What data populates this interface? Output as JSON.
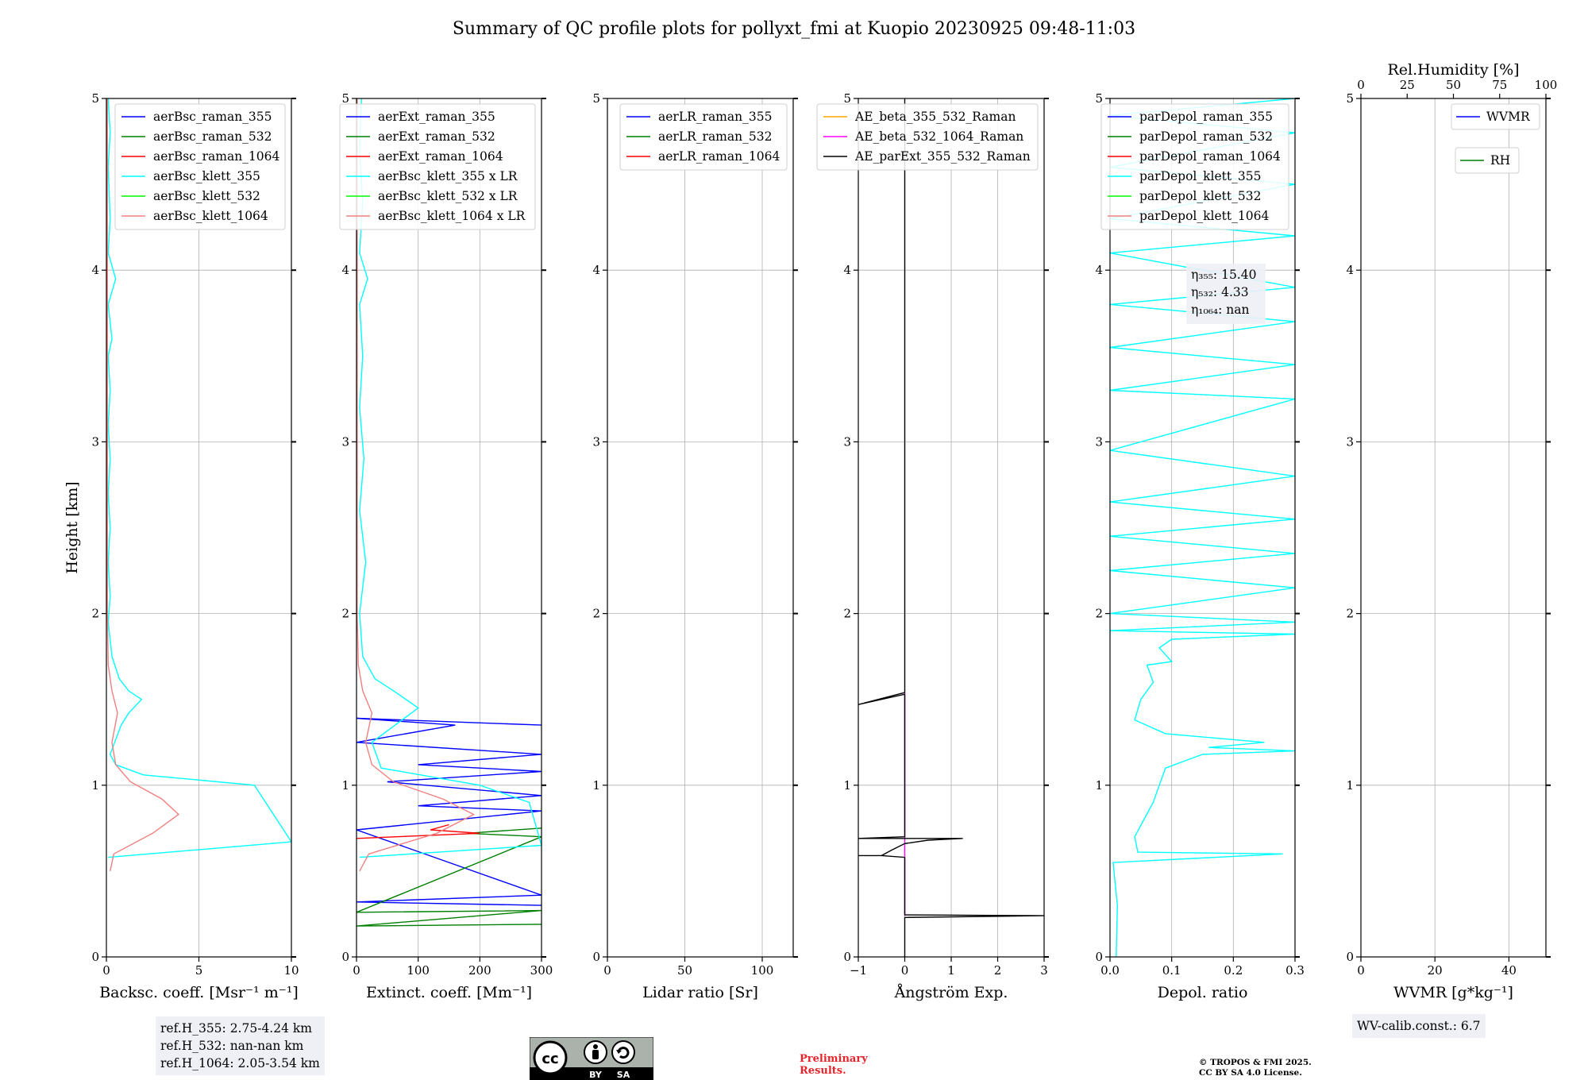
{
  "figure": {
    "title": "Summary of QC profile plots for pollyxt_fmi at Kuopio 20230925 09:48-11:03"
  },
  "chart_data": [
    {
      "type": "line",
      "id": "bsc",
      "xlabel": "Backsc. coeff. [Msr⁻¹ m⁻¹]",
      "ylabel": "Height [km]",
      "xlim": [
        0,
        10
      ],
      "ylim": [
        0,
        5
      ],
      "xticks": [
        0,
        5,
        10
      ],
      "yticks": [
        0,
        1,
        2,
        3,
        4,
        5
      ],
      "grid": true,
      "legend_position": "top-right",
      "series": [
        {
          "name": "aerBsc_raman_355",
          "color": "#0000ff",
          "points": []
        },
        {
          "name": "aerBsc_raman_532",
          "color": "#008000",
          "points": []
        },
        {
          "name": "aerBsc_raman_1064",
          "color": "#ff0000",
          "points": []
        },
        {
          "name": "aerBsc_klett_355",
          "color": "#00ffff",
          "points": [
            [
              0.1,
              0.58
            ],
            [
              10,
              0.67
            ],
            [
              8,
              1.0
            ],
            [
              2,
              1.06
            ],
            [
              0.5,
              1.12
            ],
            [
              0.2,
              1.18
            ],
            [
              0.8,
              1.35
            ],
            [
              1.2,
              1.42
            ],
            [
              1.9,
              1.5
            ],
            [
              1.2,
              1.55
            ],
            [
              0.7,
              1.62
            ],
            [
              0.3,
              1.75
            ],
            [
              0.1,
              1.95
            ],
            [
              0.2,
              2.1
            ],
            [
              0.1,
              2.3
            ],
            [
              0.2,
              2.5
            ],
            [
              0.1,
              2.7
            ],
            [
              0.2,
              2.9
            ],
            [
              0.1,
              3.1
            ],
            [
              0.2,
              3.3
            ],
            [
              0.1,
              3.5
            ],
            [
              0.3,
              3.6
            ],
            [
              0.1,
              3.8
            ],
            [
              0.5,
              3.95
            ],
            [
              0.1,
              4.1
            ],
            [
              0.2,
              4.3
            ],
            [
              0.1,
              4.6
            ],
            [
              0.2,
              4.8
            ],
            [
              0.1,
              5.0
            ]
          ]
        },
        {
          "name": "aerBsc_klett_532",
          "color": "#00ff00",
          "points": []
        },
        {
          "name": "aerBsc_klett_1064",
          "color": "#f08080",
          "points": [
            [
              0.2,
              0.5
            ],
            [
              0.4,
              0.6
            ],
            [
              2.5,
              0.72
            ],
            [
              3.9,
              0.83
            ],
            [
              3.0,
              0.92
            ],
            [
              1.3,
              1.02
            ],
            [
              0.5,
              1.12
            ],
            [
              0.3,
              1.25
            ],
            [
              0.6,
              1.42
            ],
            [
              0.3,
              1.55
            ],
            [
              0.1,
              1.7
            ],
            [
              0.05,
              2.0
            ],
            [
              0.05,
              3.0
            ],
            [
              0.05,
              4.0
            ],
            [
              0.05,
              5.0
            ]
          ]
        }
      ]
    },
    {
      "type": "line",
      "id": "ext",
      "xlabel": "Extinct. coeff. [Mm⁻¹]",
      "xlim": [
        0,
        300
      ],
      "ylim": [
        0,
        5
      ],
      "xticks": [
        0,
        100,
        200,
        300
      ],
      "yticks": [
        0,
        1,
        2,
        3,
        4,
        5
      ],
      "grid": true,
      "legend_position": "top-right",
      "series": [
        {
          "name": "aerExt_raman_355",
          "color": "#0000ff",
          "points": [
            [
              300,
              1.35
            ],
            [
              0,
              1.39
            ],
            [
              160,
              1.35
            ],
            [
              0,
              1.25
            ],
            [
              300,
              1.18
            ],
            [
              100,
              1.12
            ],
            [
              300,
              1.08
            ],
            [
              50,
              1.02
            ],
            [
              300,
              0.94
            ],
            [
              100,
              0.88
            ],
            [
              300,
              0.85
            ],
            [
              0,
              0.74
            ],
            [
              300,
              0.36
            ],
            [
              0,
              0.32
            ],
            [
              300,
              0.3
            ]
          ]
        },
        {
          "name": "aerExt_raman_532",
          "color": "#008000",
          "points": [
            [
              300,
              0.75
            ],
            [
              180,
              0.72
            ],
            [
              300,
              0.7
            ],
            [
              0,
              0.26
            ],
            [
              300,
              0.27
            ],
            [
              0,
              0.18
            ],
            [
              300,
              0.19
            ]
          ]
        },
        {
          "name": "aerExt_raman_1064",
          "color": "#ff0000",
          "points": [
            [
              150,
              0.77
            ],
            [
              120,
              0.74
            ],
            [
              200,
              0.72
            ],
            [
              0,
              0.69
            ]
          ]
        },
        {
          "name": "aerBsc_klett_355 x LR",
          "color": "#00ffff",
          "points": [
            [
              5,
              0.58
            ],
            [
              300,
              0.65
            ],
            [
              280,
              0.9
            ],
            [
              200,
              1.0
            ],
            [
              40,
              1.1
            ],
            [
              25,
              1.25
            ],
            [
              100,
              1.45
            ],
            [
              60,
              1.55
            ],
            [
              30,
              1.62
            ],
            [
              10,
              1.75
            ],
            [
              5,
              2.0
            ],
            [
              15,
              2.3
            ],
            [
              5,
              2.6
            ],
            [
              12,
              2.9
            ],
            [
              5,
              3.2
            ],
            [
              10,
              3.5
            ],
            [
              5,
              3.8
            ],
            [
              18,
              3.95
            ],
            [
              5,
              4.1
            ],
            [
              10,
              4.4
            ],
            [
              5,
              4.7
            ],
            [
              8,
              5.0
            ]
          ]
        },
        {
          "name": "aerBsc_klett_532 x LR",
          "color": "#00ff00",
          "points": []
        },
        {
          "name": "aerBsc_klett_1064 x LR",
          "color": "#f08080",
          "points": [
            [
              5,
              0.5
            ],
            [
              20,
              0.6
            ],
            [
              130,
              0.72
            ],
            [
              190,
              0.83
            ],
            [
              140,
              0.92
            ],
            [
              60,
              1.02
            ],
            [
              25,
              1.12
            ],
            [
              15,
              1.25
            ],
            [
              25,
              1.42
            ],
            [
              10,
              1.55
            ],
            [
              3,
              1.7
            ],
            [
              1,
              2.0
            ],
            [
              1,
              5.0
            ]
          ]
        }
      ]
    },
    {
      "type": "line",
      "id": "lr",
      "xlabel": "Lidar ratio [Sr]",
      "xlim": [
        0,
        120
      ],
      "ylim": [
        0,
        5
      ],
      "xticks": [
        0,
        50,
        100
      ],
      "yticks": [
        0,
        1,
        2,
        3,
        4,
        5
      ],
      "grid": true,
      "legend_position": "top-right",
      "series": [
        {
          "name": "aerLR_raman_355",
          "color": "#0000ff",
          "points": []
        },
        {
          "name": "aerLR_raman_532",
          "color": "#008000",
          "points": []
        },
        {
          "name": "aerLR_raman_1064",
          "color": "#ff0000",
          "points": []
        }
      ]
    },
    {
      "type": "line",
      "id": "ae",
      "xlabel": "Ångström Exp.",
      "xlim": [
        -1,
        3
      ],
      "ylim": [
        0,
        5
      ],
      "xticks": [
        -1,
        0,
        1,
        2,
        3
      ],
      "xtick_labels": [
        "−1",
        "0",
        "1",
        "2",
        "3"
      ],
      "yticks": [
        0,
        1,
        2,
        3,
        4,
        5
      ],
      "grid": true,
      "legend_position": "top-right",
      "series": [
        {
          "name": "AE_beta_355_532_Raman",
          "color": "#ffa500",
          "points": []
        },
        {
          "name": "AE_beta_532_1064_Raman",
          "color": "#ff00ff",
          "points": [
            [
              0,
              0.24
            ],
            [
              0,
              1.54
            ]
          ]
        },
        {
          "name": "AE_parExt_355_532_Raman",
          "color": "#000000",
          "points": [
            [
              0,
              0.0
            ],
            [
              0,
              0.23
            ],
            [
              3,
              0.24
            ],
            [
              0,
              0.245
            ],
            [
              0,
              0.58
            ],
            [
              -0.5,
              0.59
            ],
            [
              -1,
              0.59
            ],
            [
              -0.5,
              0.59
            ],
            [
              -0.3,
              0.62
            ],
            [
              0,
              0.66
            ],
            [
              0.5,
              0.68
            ],
            [
              1.25,
              0.69
            ],
            [
              -1,
              0.69
            ],
            [
              0,
              0.7
            ],
            [
              0,
              1.53
            ],
            [
              -1,
              1.47
            ],
            [
              0,
              1.54
            ],
            [
              0,
              5.0
            ]
          ]
        }
      ]
    },
    {
      "type": "line",
      "id": "depol",
      "xlabel": "Depol. ratio",
      "xlim": [
        0,
        0.3
      ],
      "ylim": [
        0,
        5
      ],
      "xticks": [
        0,
        0.1,
        0.2,
        0.3
      ],
      "xtick_labels": [
        "0.0",
        "0.1",
        "0.2",
        "0.3"
      ],
      "yticks": [
        0,
        1,
        2,
        3,
        4,
        5
      ],
      "grid": true,
      "legend_position": "top-right",
      "series": [
        {
          "name": "parDepol_raman_355",
          "color": "#0000ff",
          "points": []
        },
        {
          "name": "parDepol_raman_532",
          "color": "#008000",
          "points": []
        },
        {
          "name": "parDepol_raman_1064",
          "color": "#ff0000",
          "points": []
        },
        {
          "name": "parDepol_klett_355",
          "color": "#00ffff",
          "points": [
            [
              0.01,
              0.0
            ],
            [
              0.012,
              0.3
            ],
            [
              0.005,
              0.55
            ],
            [
              0.28,
              0.6
            ],
            [
              0.045,
              0.61
            ],
            [
              0.04,
              0.7
            ],
            [
              0.055,
              0.8
            ],
            [
              0.07,
              0.9
            ],
            [
              0.08,
              1.0
            ],
            [
              0.09,
              1.1
            ],
            [
              0.15,
              1.18
            ],
            [
              0.3,
              1.2
            ],
            [
              0.16,
              1.22
            ],
            [
              0.25,
              1.25
            ],
            [
              0.09,
              1.3
            ],
            [
              0.04,
              1.38
            ],
            [
              0.05,
              1.5
            ],
            [
              0.07,
              1.6
            ],
            [
              0.06,
              1.7
            ],
            [
              0.1,
              1.72
            ],
            [
              0.08,
              1.8
            ],
            [
              0.1,
              1.85
            ],
            [
              0.3,
              1.88
            ],
            [
              0.0,
              1.9
            ],
            [
              0.3,
              1.95
            ],
            [
              0.0,
              2.0
            ],
            [
              0.3,
              2.15
            ],
            [
              0.0,
              2.25
            ],
            [
              0.3,
              2.35
            ],
            [
              0.0,
              2.45
            ],
            [
              0.3,
              2.55
            ],
            [
              0.0,
              2.65
            ],
            [
              0.3,
              2.8
            ],
            [
              0.0,
              2.95
            ],
            [
              0.3,
              3.25
            ],
            [
              0.0,
              3.3
            ],
            [
              0.3,
              3.45
            ],
            [
              0.0,
              3.55
            ],
            [
              0.3,
              3.7
            ],
            [
              0.0,
              3.8
            ],
            [
              0.3,
              3.9
            ],
            [
              0.0,
              4.1
            ],
            [
              0.3,
              4.2
            ],
            [
              0.0,
              4.3
            ],
            [
              0.3,
              4.5
            ],
            [
              0.0,
              4.6
            ],
            [
              0.3,
              4.8
            ],
            [
              0.0,
              4.9
            ],
            [
              0.3,
              5.0
            ]
          ]
        },
        {
          "name": "parDepol_klett_532",
          "color": "#00ff00",
          "points": []
        },
        {
          "name": "parDepol_klett_1064",
          "color": "#f08080",
          "points": []
        }
      ],
      "annotation": {
        "lines": [
          "η₃₅₅: 15.40",
          "η₅₃₂: 4.33",
          "η₁₀₆₄: nan"
        ]
      }
    },
    {
      "type": "line",
      "id": "wv",
      "xlabel": "WVMR [g*kg⁻¹]",
      "x2label": "Rel.Humidity [%]",
      "xlim": [
        0,
        50
      ],
      "x2lim": [
        0,
        100
      ],
      "ylim": [
        0,
        5
      ],
      "xticks": [
        0,
        20,
        40
      ],
      "x2ticks": [
        0,
        25,
        50,
        75,
        100
      ],
      "yticks": [
        0,
        1,
        2,
        3,
        4,
        5
      ],
      "grid": true,
      "legend_position": "top-right",
      "series": [
        {
          "name": "WVMR",
          "color": "#0000ff",
          "points": []
        },
        {
          "name": "RH",
          "color": "#008000",
          "points": []
        }
      ]
    }
  ],
  "footer": {
    "ref_heights": [
      "ref.H_355: 2.75-4.24 km",
      "ref.H_532: nan-nan km",
      "ref.H_1064: 2.05-3.54 km"
    ],
    "wv_calib": "WV-calib.const.: 6.7",
    "preliminary": [
      "Preliminary",
      "Results."
    ],
    "copyright": [
      "© TROPOS & FMI 2025.",
      "CC BY SA 4.0 License."
    ],
    "license_badge": {
      "logo": "cc",
      "labels": [
        "BY",
        "SA"
      ]
    }
  }
}
